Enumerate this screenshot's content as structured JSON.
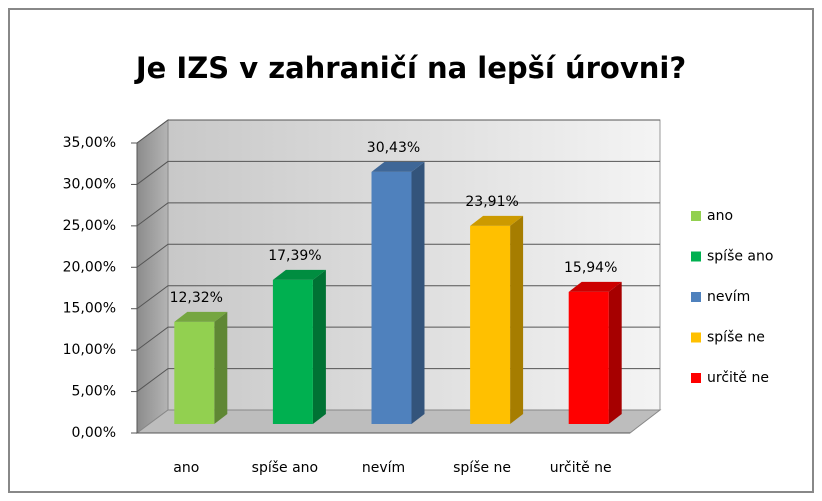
{
  "chart_data": {
    "type": "bar3d",
    "title": "Je IZS v zahraničí na lepší úrovni?",
    "categories": [
      "ano",
      "spíše ano",
      "nevím",
      "spíše ne",
      "určitě ne"
    ],
    "values": [
      12.32,
      17.39,
      30.43,
      23.91,
      15.94
    ],
    "value_labels": [
      "12,32%",
      "17,39%",
      "30,43%",
      "23,91%",
      "15,94%"
    ],
    "colors": [
      "#92d050",
      "#00b050",
      "#4f81bd",
      "#ffc000",
      "#ff0000"
    ],
    "ylim": [
      0,
      35
    ],
    "yticks": [
      {
        "value": 0,
        "label": "0,00%"
      },
      {
        "value": 5,
        "label": "5,00%"
      },
      {
        "value": 10,
        "label": "10,00%"
      },
      {
        "value": 15,
        "label": "15,00%"
      },
      {
        "value": 20,
        "label": "20,00%"
      },
      {
        "value": 25,
        "label": "25,00%"
      },
      {
        "value": 30,
        "label": "30,00%"
      },
      {
        "value": 35,
        "label": "35,00%"
      }
    ],
    "grid": true,
    "legend": "right"
  }
}
